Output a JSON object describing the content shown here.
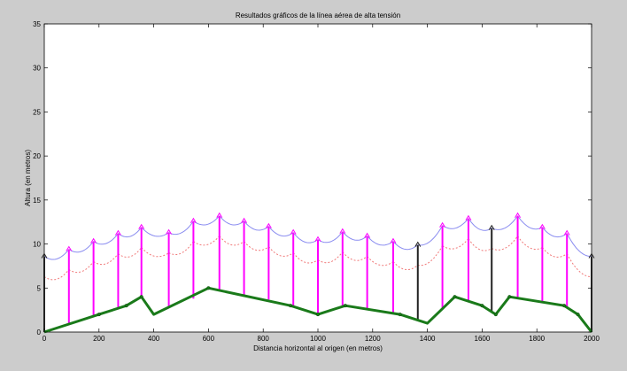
{
  "colors": {
    "figure_bg": "#cccccc",
    "plot_bg": "#ffffff",
    "cable": "#8a8cf0",
    "clearance": "#f07878",
    "terrain": "#1a7a1a",
    "tower": "#ff00ff",
    "tower_alt": "#222222",
    "marker": "#ff00ff"
  },
  "chart_data": {
    "type": "line",
    "title": "Resultados gráficos de la línea aérea de alta tensión",
    "xlabel": "Distancia horizontal al origen (en metros)",
    "ylabel": "Altura (en metros)",
    "xlim": [
      0,
      2000
    ],
    "ylim": [
      0,
      35
    ],
    "xticks": [
      0,
      200,
      400,
      600,
      800,
      1000,
      1200,
      1400,
      1600,
      1800,
      2000
    ],
    "yticks": [
      0,
      5,
      10,
      15,
      20,
      25,
      30,
      35
    ],
    "grid": false,
    "legend": "none",
    "terrain": {
      "x": [
        0,
        200,
        300,
        355,
        400,
        600,
        900,
        1000,
        1100,
        1300,
        1400,
        1500,
        1600,
        1650,
        1700,
        1900,
        1950,
        2000
      ],
      "y": [
        0,
        2,
        3,
        4,
        2,
        5,
        3,
        2,
        3,
        2,
        1,
        4,
        3,
        2,
        4,
        3,
        2,
        0
      ]
    },
    "towers": [
      {
        "x": 0,
        "base": 0,
        "top": 8.6,
        "color": "alt"
      },
      {
        "x": 90,
        "base": 0.9,
        "top": 9.4,
        "color": "main"
      },
      {
        "x": 180,
        "base": 1.8,
        "top": 10.3,
        "color": "main"
      },
      {
        "x": 270,
        "base": 2.7,
        "top": 11.2,
        "color": "main"
      },
      {
        "x": 355,
        "base": 4.0,
        "top": 11.9,
        "color": "main"
      },
      {
        "x": 455,
        "base": 2.8,
        "top": 11.3,
        "color": "main"
      },
      {
        "x": 545,
        "base": 3.8,
        "top": 12.6,
        "color": "main"
      },
      {
        "x": 640,
        "base": 4.7,
        "top": 13.2,
        "color": "main"
      },
      {
        "x": 730,
        "base": 4.2,
        "top": 12.6,
        "color": "main"
      },
      {
        "x": 820,
        "base": 3.7,
        "top": 12.0,
        "color": "main"
      },
      {
        "x": 910,
        "base": 2.9,
        "top": 11.3,
        "color": "main"
      },
      {
        "x": 1000,
        "base": 2.0,
        "top": 10.5,
        "color": "main"
      },
      {
        "x": 1090,
        "base": 2.9,
        "top": 11.4,
        "color": "main"
      },
      {
        "x": 1180,
        "base": 2.6,
        "top": 10.9,
        "color": "main"
      },
      {
        "x": 1275,
        "base": 2.1,
        "top": 10.3,
        "color": "main"
      },
      {
        "x": 1365,
        "base": 1.3,
        "top": 9.9,
        "color": "alt"
      },
      {
        "x": 1455,
        "base": 2.7,
        "top": 12.1,
        "color": "main"
      },
      {
        "x": 1550,
        "base": 3.6,
        "top": 12.9,
        "color": "main"
      },
      {
        "x": 1635,
        "base": 2.3,
        "top": 11.8,
        "color": "alt"
      },
      {
        "x": 1730,
        "base": 3.8,
        "top": 13.2,
        "color": "main"
      },
      {
        "x": 1820,
        "base": 3.4,
        "top": 11.9,
        "color": "main"
      },
      {
        "x": 1910,
        "base": 2.7,
        "top": 11.2,
        "color": "main"
      },
      {
        "x": 2000,
        "base": 0,
        "top": 8.6,
        "color": "alt"
      }
    ],
    "cable_sag": 0.7,
    "clearance_offset": 2.3,
    "terrain_markers": [
      {
        "x": 200,
        "y": 2
      },
      {
        "x": 300,
        "y": 3
      },
      {
        "x": 355,
        "y": 4
      },
      {
        "x": 600,
        "y": 5
      },
      {
        "x": 900,
        "y": 3
      },
      {
        "x": 1000,
        "y": 2
      },
      {
        "x": 1100,
        "y": 3
      },
      {
        "x": 1300,
        "y": 2
      },
      {
        "x": 1500,
        "y": 4
      },
      {
        "x": 1600,
        "y": 3
      },
      {
        "x": 1650,
        "y": 2
      },
      {
        "x": 1700,
        "y": 4
      },
      {
        "x": 1900,
        "y": 3
      },
      {
        "x": 1950,
        "y": 2
      }
    ]
  }
}
